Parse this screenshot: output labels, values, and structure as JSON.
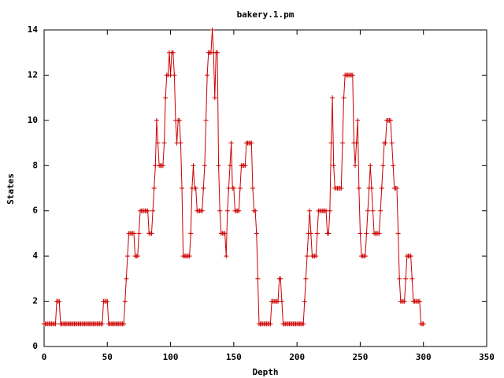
{
  "chart_data": {
    "type": "line",
    "title": "bakery.1.pm",
    "xlabel": "Depth",
    "ylabel": "States",
    "xlim": [
      0,
      350
    ],
    "xticks": [
      0,
      50,
      100,
      150,
      200,
      250,
      300,
      350
    ],
    "ylim": [
      0,
      14
    ],
    "yticks": [
      0,
      2,
      4,
      6,
      8,
      10,
      12,
      14
    ],
    "x": [
      0,
      1,
      2,
      3,
      4,
      5,
      6,
      7,
      8,
      9,
      10,
      11,
      12,
      13,
      14,
      15,
      16,
      17,
      18,
      19,
      20,
      21,
      22,
      23,
      24,
      25,
      26,
      27,
      28,
      29,
      30,
      31,
      32,
      33,
      34,
      35,
      36,
      37,
      38,
      39,
      40,
      41,
      42,
      43,
      44,
      45,
      46,
      47,
      48,
      49,
      50,
      51,
      52,
      53,
      54,
      55,
      56,
      57,
      58,
      59,
      60,
      61,
      62,
      63,
      64,
      65,
      66,
      67,
      68,
      69,
      70,
      71,
      72,
      73,
      74,
      75,
      76,
      77,
      78,
      79,
      80,
      81,
      82,
      83,
      84,
      85,
      86,
      87,
      88,
      89,
      90,
      91,
      92,
      93,
      94,
      95,
      96,
      97,
      98,
      99,
      100,
      101,
      102,
      103,
      104,
      105,
      106,
      107,
      108,
      109,
      110,
      111,
      112,
      113,
      114,
      115,
      116,
      117,
      118,
      119,
      120,
      121,
      122,
      123,
      124,
      125,
      126,
      127,
      128,
      129,
      130,
      131,
      132,
      133,
      134,
      135,
      136,
      137,
      138,
      139,
      140,
      141,
      142,
      143,
      144,
      145,
      146,
      147,
      148,
      149,
      150,
      151,
      152,
      153,
      154,
      155,
      156,
      157,
      158,
      159,
      160,
      161,
      162,
      163,
      164,
      165,
      166,
      167,
      168,
      169,
      170,
      171,
      172,
      173,
      174,
      175,
      176,
      177,
      178,
      179,
      180,
      181,
      182,
      183,
      184,
      185,
      186,
      187,
      188,
      189,
      190,
      191,
      192,
      193,
      194,
      195,
      196,
      197,
      198,
      199,
      200,
      201,
      202,
      203,
      204,
      205,
      206,
      207,
      208,
      209,
      210,
      211,
      212,
      213,
      214,
      215,
      216,
      217,
      218,
      219,
      220,
      221,
      222,
      223,
      224,
      225,
      226,
      227,
      228,
      229,
      230,
      231,
      232,
      233,
      234,
      235,
      236,
      237,
      238,
      239,
      240,
      241,
      242,
      243,
      244,
      245,
      246,
      247,
      248,
      249,
      250,
      251,
      252,
      253,
      254,
      255,
      256,
      257,
      258,
      259,
      260,
      261,
      262,
      263,
      264,
      265,
      266,
      267,
      268,
      269,
      270,
      271,
      272,
      273,
      274,
      275,
      276,
      277,
      278,
      279,
      280,
      281,
      282,
      283,
      284,
      285,
      286,
      287,
      288,
      289,
      290,
      291,
      292,
      293,
      294,
      295,
      296,
      297,
      298,
      299,
      300
    ],
    "series": [
      {
        "color": "#cc0000",
        "values": [
          1,
          1,
          1,
          1,
          1,
          1,
          1,
          1,
          1,
          1,
          2,
          2,
          2,
          1,
          1,
          1,
          1,
          1,
          1,
          1,
          1,
          1,
          1,
          1,
          1,
          1,
          1,
          1,
          1,
          1,
          1,
          1,
          1,
          1,
          1,
          1,
          1,
          1,
          1,
          1,
          1,
          1,
          1,
          1,
          1,
          1,
          1,
          2,
          2,
          2,
          2,
          1,
          1,
          1,
          1,
          1,
          1,
          1,
          1,
          1,
          1,
          1,
          1,
          1,
          2,
          3,
          4,
          5,
          5,
          5,
          5,
          5,
          4,
          4,
          4,
          5,
          6,
          6,
          6,
          6,
          6,
          6,
          6,
          5,
          5,
          5,
          6,
          7,
          8,
          10,
          9,
          8,
          8,
          8,
          8,
          9,
          11,
          12,
          12,
          13,
          12,
          13,
          13,
          12,
          10,
          9,
          10,
          10,
          9,
          7,
          4,
          4,
          4,
          4,
          4,
          4,
          5,
          7,
          8,
          7,
          7,
          6,
          6,
          6,
          6,
          6,
          7,
          8,
          10,
          12,
          13,
          13,
          13,
          14,
          13,
          11,
          13,
          13,
          8,
          6,
          5,
          5,
          5,
          5,
          4,
          6,
          7,
          8,
          9,
          7,
          7,
          6,
          6,
          6,
          6,
          7,
          8,
          8,
          8,
          8,
          9,
          9,
          9,
          9,
          9,
          7,
          6,
          6,
          5,
          3,
          1,
          1,
          1,
          1,
          1,
          1,
          1,
          1,
          1,
          1,
          2,
          2,
          2,
          2,
          2,
          2,
          3,
          3,
          2,
          1,
          1,
          1,
          1,
          1,
          1,
          1,
          1,
          1,
          1,
          1,
          1,
          1,
          1,
          1,
          1,
          1,
          2,
          3,
          4,
          5,
          6,
          5,
          4,
          4,
          4,
          4,
          5,
          6,
          6,
          6,
          6,
          6,
          6,
          6,
          5,
          5,
          6,
          9,
          11,
          8,
          7,
          7,
          7,
          7,
          7,
          7,
          9,
          11,
          12,
          12,
          12,
          12,
          12,
          12,
          12,
          9,
          8,
          9,
          10,
          7,
          5,
          4,
          4,
          4,
          4,
          5,
          6,
          7,
          8,
          7,
          6,
          5,
          5,
          5,
          5,
          5,
          6,
          7,
          8,
          9,
          9,
          10,
          10,
          10,
          10,
          9,
          8,
          7,
          7,
          7,
          5,
          3,
          2,
          2,
          2,
          2,
          3,
          4,
          4,
          4,
          4,
          3,
          2,
          2,
          2,
          2,
          2,
          2,
          1,
          1,
          1
        ]
      }
    ]
  }
}
